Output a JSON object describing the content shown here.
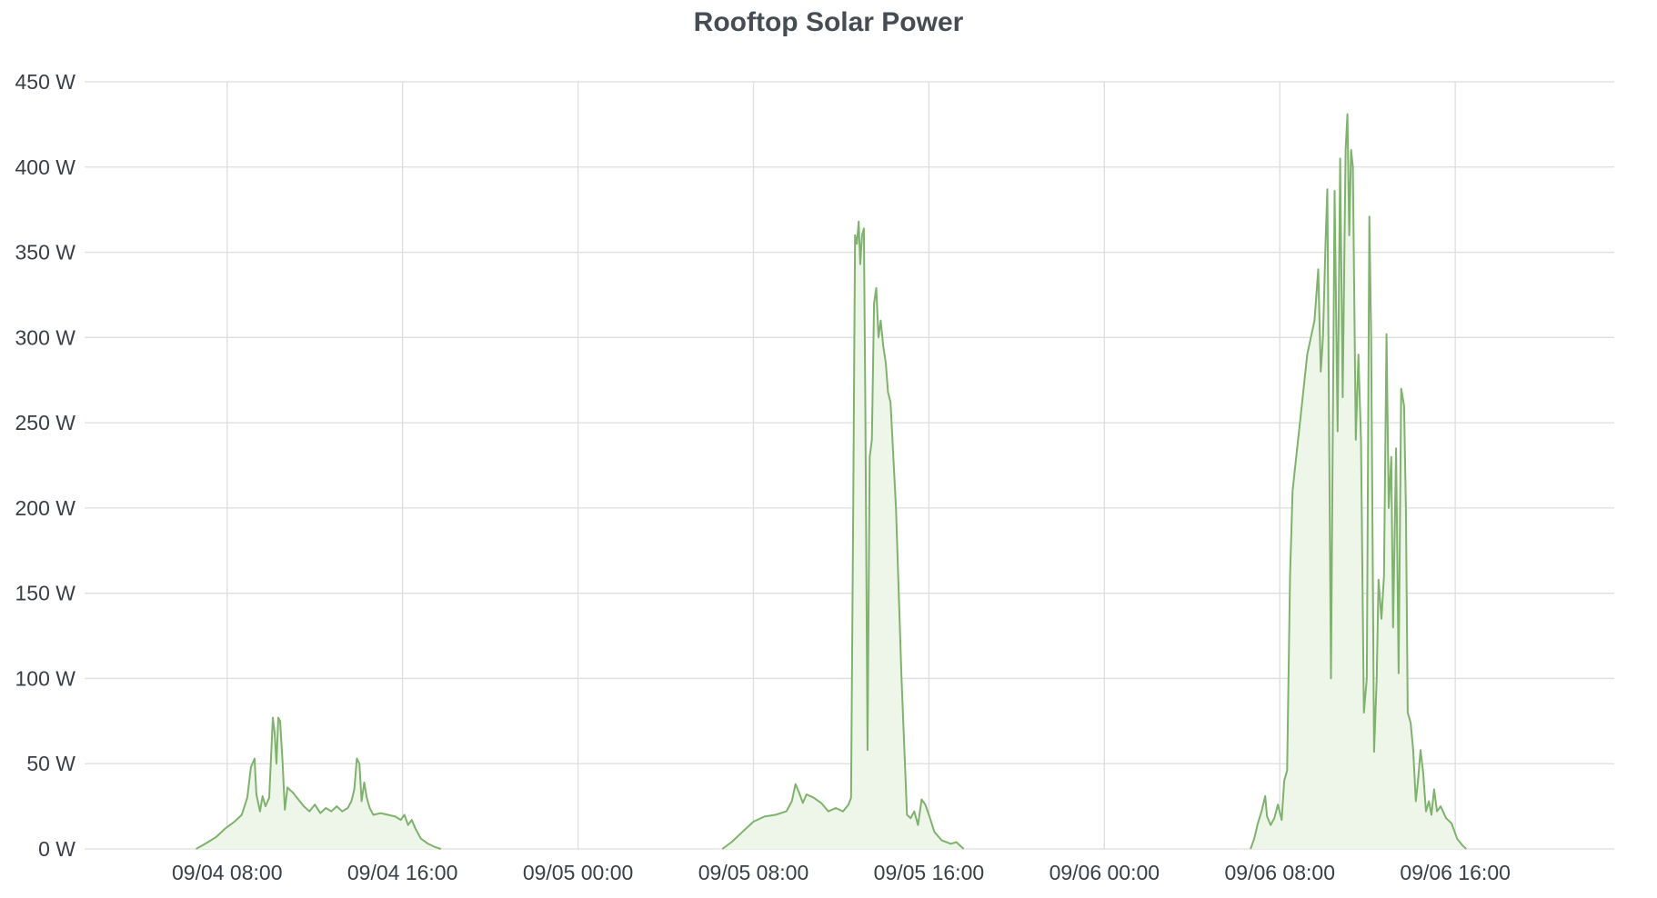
{
  "chart_data": {
    "type": "area",
    "title": "Rooftop Solar Power",
    "xlabel": "",
    "ylabel": "",
    "unit": "W",
    "grid": true,
    "legend": "none",
    "line_color": "#7eb26d",
    "fill_color": "#eef6e9",
    "ylim": [
      0,
      450
    ],
    "yticks": [
      0,
      50,
      100,
      150,
      200,
      250,
      300,
      350,
      400,
      450
    ],
    "ytick_labels": [
      "0 W",
      "50 W",
      "100 W",
      "150 W",
      "200 W",
      "250 W",
      "300 W",
      "350 W",
      "400 W",
      "450 W"
    ],
    "xlim": [
      "09/04 01:30",
      "09/06 23:15"
    ],
    "xticks": [
      "09/04 08:00",
      "09/04 16:00",
      "09/05 00:00",
      "09/05 08:00",
      "09/05 16:00",
      "09/06 00:00",
      "09/06 08:00",
      "09/06 16:00"
    ],
    "series": [
      {
        "segments": [
          [
            [
              "09/04 06:35",
              0
            ],
            [
              "09/04 07:00",
              3
            ],
            [
              "09/04 07:30",
              7
            ],
            [
              "09/04 07:55",
              12
            ],
            [
              "09/04 08:20",
              16
            ],
            [
              "09/04 08:40",
              20
            ],
            [
              "09/04 08:55",
              30
            ],
            [
              "09/04 09:05",
              48
            ],
            [
              "09/04 09:15",
              53
            ],
            [
              "09/04 09:20",
              32
            ],
            [
              "09/04 09:30",
              22
            ],
            [
              "09/04 09:37",
              31
            ],
            [
              "09/04 09:45",
              25
            ],
            [
              "09/04 09:55",
              30
            ],
            [
              "09/04 10:05",
              77
            ],
            [
              "09/04 10:10",
              68
            ],
            [
              "09/04 10:15",
              50
            ],
            [
              "09/04 10:20",
              77
            ],
            [
              "09/04 10:25",
              75
            ],
            [
              "09/04 10:32",
              50
            ],
            [
              "09/04 10:38",
              23
            ],
            [
              "09/04 10:45",
              36
            ],
            [
              "09/04 11:00",
              33
            ],
            [
              "09/04 11:15",
              29
            ],
            [
              "09/04 11:30",
              25
            ],
            [
              "09/04 11:45",
              22
            ],
            [
              "09/04 12:00",
              26
            ],
            [
              "09/04 12:15",
              21
            ],
            [
              "09/04 12:30",
              24
            ],
            [
              "09/04 12:45",
              22
            ],
            [
              "09/04 13:00",
              25
            ],
            [
              "09/04 13:15",
              22
            ],
            [
              "09/04 13:30",
              24
            ],
            [
              "09/04 13:40",
              28
            ],
            [
              "09/04 13:48",
              35
            ],
            [
              "09/04 13:55",
              53
            ],
            [
              "09/04 14:02",
              50
            ],
            [
              "09/04 14:08",
              28
            ],
            [
              "09/04 14:15",
              39
            ],
            [
              "09/04 14:22",
              30
            ],
            [
              "09/04 14:30",
              24
            ],
            [
              "09/04 14:40",
              20
            ],
            [
              "09/04 15:00",
              21
            ],
            [
              "09/04 15:20",
              20
            ],
            [
              "09/04 15:40",
              19
            ],
            [
              "09/04 15:55",
              17
            ],
            [
              "09/04 16:05",
              20
            ],
            [
              "09/04 16:15",
              14
            ],
            [
              "09/04 16:25",
              17
            ],
            [
              "09/04 16:35",
              12
            ],
            [
              "09/04 16:50",
              6
            ],
            [
              "09/04 17:10",
              3
            ],
            [
              "09/04 17:30",
              1
            ],
            [
              "09/04 17:45",
              0
            ]
          ],
          [
            [
              "09/05 06:35",
              0
            ],
            [
              "09/05 07:00",
              4
            ],
            [
              "09/05 07:30",
              10
            ],
            [
              "09/05 08:00",
              16
            ],
            [
              "09/05 08:30",
              19
            ],
            [
              "09/05 09:00",
              20
            ],
            [
              "09/05 09:30",
              22
            ],
            [
              "09/05 09:45",
              28
            ],
            [
              "09/05 09:55",
              38
            ],
            [
              "09/05 10:05",
              33
            ],
            [
              "09/05 10:15",
              27
            ],
            [
              "09/05 10:25",
              32
            ],
            [
              "09/05 10:45",
              30
            ],
            [
              "09/05 11:05",
              27
            ],
            [
              "09/05 11:25",
              22
            ],
            [
              "09/05 11:45",
              24
            ],
            [
              "09/05 12:05",
              22
            ],
            [
              "09/05 12:20",
              26
            ],
            [
              "09/05 12:27",
              30
            ],
            [
              "09/05 12:33",
              200
            ],
            [
              "09/05 12:38",
              360
            ],
            [
              "09/05 12:43",
              355
            ],
            [
              "09/05 12:48",
              368
            ],
            [
              "09/05 12:52",
              343
            ],
            [
              "09/05 12:57",
              360
            ],
            [
              "09/05 13:02",
              364
            ],
            [
              "09/05 13:06",
              260
            ],
            [
              "09/05 13:12",
              58
            ],
            [
              "09/05 13:18",
              230
            ],
            [
              "09/05 13:24",
              240
            ],
            [
              "09/05 13:30",
              320
            ],
            [
              "09/05 13:36",
              329
            ],
            [
              "09/05 13:42",
              300
            ],
            [
              "09/05 13:48",
              310
            ],
            [
              "09/05 13:55",
              295
            ],
            [
              "09/05 14:02",
              285
            ],
            [
              "09/05 14:08",
              268
            ],
            [
              "09/05 14:15",
              262
            ],
            [
              "09/05 14:30",
              200
            ],
            [
              "09/05 14:45",
              100
            ],
            [
              "09/05 15:00",
              20
            ],
            [
              "09/05 15:10",
              18
            ],
            [
              "09/05 15:20",
              22
            ],
            [
              "09/05 15:30",
              14
            ],
            [
              "09/05 15:40",
              29
            ],
            [
              "09/05 15:50",
              26
            ],
            [
              "09/05 16:00",
              20
            ],
            [
              "09/05 16:15",
              10
            ],
            [
              "09/05 16:35",
              5
            ],
            [
              "09/05 17:00",
              3
            ],
            [
              "09/05 17:15",
              4
            ],
            [
              "09/05 17:35",
              0
            ]
          ],
          [
            [
              "09/06 06:40",
              0
            ],
            [
              "09/06 06:50",
              6
            ],
            [
              "09/06 07:00",
              15
            ],
            [
              "09/06 07:10",
              22
            ],
            [
              "09/06 07:20",
              31
            ],
            [
              "09/06 07:25",
              19
            ],
            [
              "09/06 07:35",
              14
            ],
            [
              "09/06 07:45",
              18
            ],
            [
              "09/06 07:55",
              26
            ],
            [
              "09/06 08:05",
              17
            ],
            [
              "09/06 08:12",
              40
            ],
            [
              "09/06 08:20",
              46
            ],
            [
              "09/06 08:28",
              160
            ],
            [
              "09/06 08:35",
              210
            ],
            [
              "09/06 08:45",
              230
            ],
            [
              "09/06 08:55",
              250
            ],
            [
              "09/06 09:05",
              270
            ],
            [
              "09/06 09:15",
              290
            ],
            [
              "09/06 09:25",
              300
            ],
            [
              "09/06 09:35",
              310
            ],
            [
              "09/06 09:45",
              340
            ],
            [
              "09/06 09:52",
              280
            ],
            [
              "09/06 09:58",
              300
            ],
            [
              "09/06 10:05",
              355
            ],
            [
              "09/06 10:10",
              387
            ],
            [
              "09/06 10:20",
              100
            ],
            [
              "09/06 10:30",
              386
            ],
            [
              "09/06 10:38",
              245
            ],
            [
              "09/06 10:45",
              405
            ],
            [
              "09/06 10:52",
              265
            ],
            [
              "09/06 11:00",
              410
            ],
            [
              "09/06 11:05",
              431
            ],
            [
              "09/06 11:10",
              360
            ],
            [
              "09/06 11:15",
              410
            ],
            [
              "09/06 11:20",
              400
            ],
            [
              "09/06 11:28",
              240
            ],
            [
              "09/06 11:35",
              290
            ],
            [
              "09/06 11:42",
              240
            ],
            [
              "09/06 11:50",
              80
            ],
            [
              "09/06 11:58",
              100
            ],
            [
              "09/06 12:05",
              371
            ],
            [
              "09/06 12:10",
              300
            ],
            [
              "09/06 12:18",
              57
            ],
            [
              "09/06 12:25",
              100
            ],
            [
              "09/06 12:30",
              158
            ],
            [
              "09/06 12:38",
              135
            ],
            [
              "09/06 12:45",
              160
            ],
            [
              "09/06 12:52",
              302
            ],
            [
              "09/06 12:58",
              200
            ],
            [
              "09/06 13:05",
              230
            ],
            [
              "09/06 13:10",
              130
            ],
            [
              "09/06 13:18",
              235
            ],
            [
              "09/06 13:25",
              103
            ],
            [
              "09/06 13:32",
              270
            ],
            [
              "09/06 13:40",
              260
            ],
            [
              "09/06 13:45",
              200
            ],
            [
              "09/06 13:50",
              80
            ],
            [
              "09/06 13:58",
              74
            ],
            [
              "09/06 14:05",
              58
            ],
            [
              "09/06 14:12",
              28
            ],
            [
              "09/06 14:18",
              40
            ],
            [
              "09/06 14:25",
              58
            ],
            [
              "09/06 14:32",
              45
            ],
            [
              "09/06 14:40",
              22
            ],
            [
              "09/06 14:48",
              28
            ],
            [
              "09/06 14:55",
              20
            ],
            [
              "09/06 15:02",
              35
            ],
            [
              "09/06 15:10",
              22
            ],
            [
              "09/06 15:20",
              25
            ],
            [
              "09/06 15:35",
              18
            ],
            [
              "09/06 15:50",
              15
            ],
            [
              "09/06 16:05",
              6
            ],
            [
              "09/06 16:20",
              2
            ],
            [
              "09/06 16:30",
              0
            ]
          ]
        ]
      }
    ]
  }
}
